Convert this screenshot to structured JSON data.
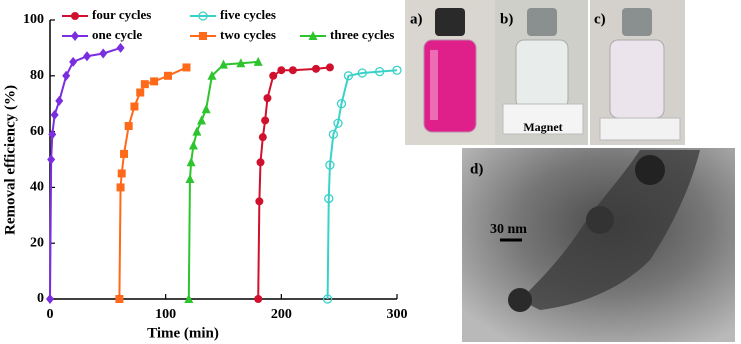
{
  "chart_data": {
    "type": "line",
    "xlabel": "Time (min)",
    "ylabel": "Removal efficiency (%)",
    "xlim": [
      0,
      300
    ],
    "xticks": [
      0,
      100,
      200,
      300
    ],
    "ylim": [
      0,
      100
    ],
    "yticks": [
      0,
      20,
      40,
      60,
      80,
      100
    ],
    "series": [
      {
        "name": "one cycle",
        "color": "#7a2ee0",
        "marker": "diamond",
        "x": [
          0,
          1,
          2,
          4,
          8,
          14,
          20,
          32,
          46,
          61
        ],
        "values": [
          0,
          50,
          59,
          66,
          71,
          80,
          85,
          87,
          88,
          90
        ]
      },
      {
        "name": "two cycles",
        "color": "#ff6a1a",
        "marker": "square",
        "x": [
          60,
          61,
          62,
          64,
          68,
          73,
          78,
          82,
          90,
          102,
          118
        ],
        "values": [
          0,
          40,
          45,
          52,
          62,
          69,
          74,
          77,
          78,
          80,
          83
        ]
      },
      {
        "name": "three cycles",
        "color": "#2ec42e",
        "marker": "triangle",
        "x": [
          120,
          121,
          122,
          124,
          127,
          131,
          135,
          140,
          150,
          165,
          180
        ],
        "values": [
          0,
          43,
          49,
          55,
          60,
          64,
          68,
          80,
          84,
          84.5,
          85
        ]
      },
      {
        "name": "four cycles",
        "color": "#d0102c",
        "marker": "circle",
        "x": [
          180,
          181,
          182,
          184,
          186,
          188,
          193,
          200,
          210,
          230,
          242
        ],
        "values": [
          0,
          35,
          49,
          58,
          64,
          72,
          80,
          82,
          82,
          82.5,
          83
        ]
      },
      {
        "name": "five cycles",
        "color": "#3ad2c8",
        "marker": "open-circle",
        "x": [
          240,
          241,
          242,
          245,
          249,
          252,
          258,
          270,
          285,
          300
        ],
        "values": [
          0,
          36,
          48,
          59,
          63,
          70,
          80,
          81,
          81.5,
          82
        ]
      }
    ]
  },
  "photos": {
    "panel_a": "a)",
    "panel_b": "b)",
    "panel_c": "c)",
    "magnet": "Magnet",
    "panel_d": "d)",
    "scale_bar": "30 nm"
  }
}
